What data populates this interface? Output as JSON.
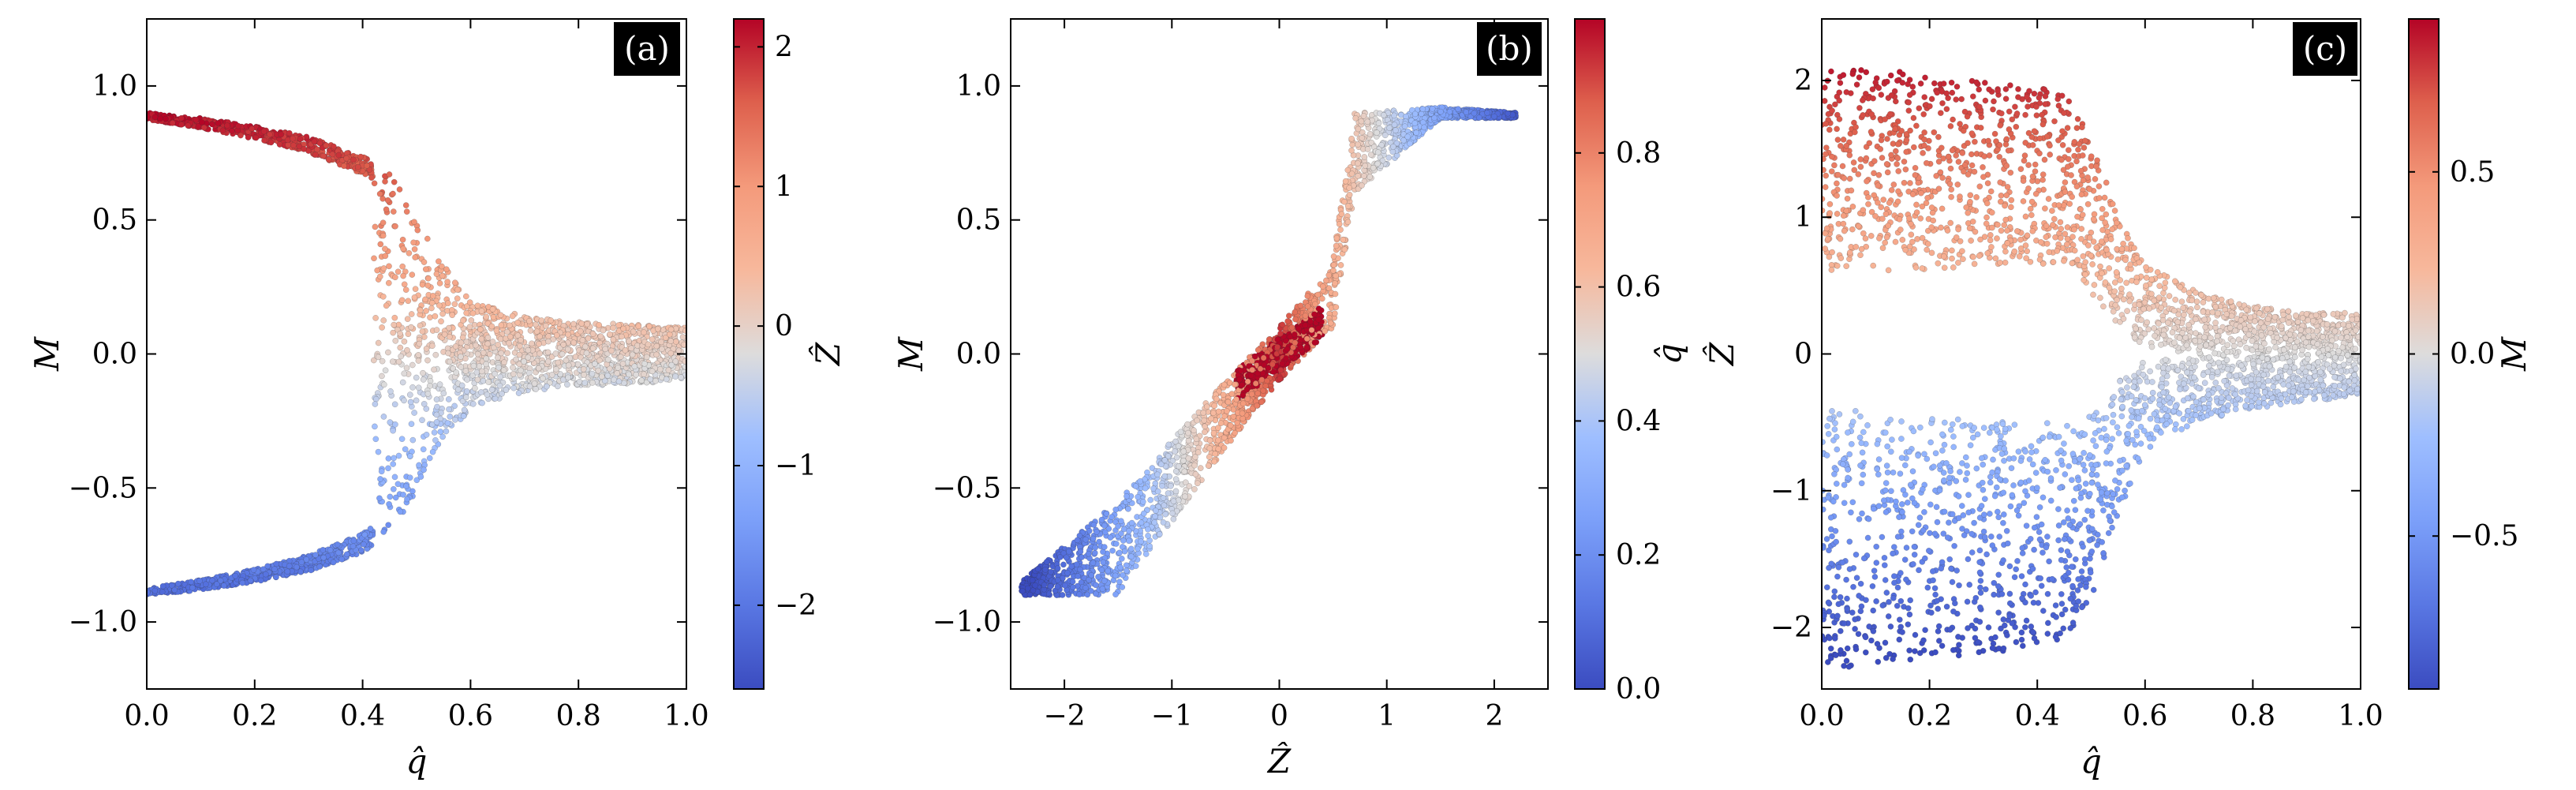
{
  "chart_data": [
    {
      "type": "scatter",
      "panel_label": "(a)",
      "xlabel": "q̂",
      "ylabel": "M",
      "xlim": [
        0.0,
        1.0
      ],
      "ylim": [
        -1.25,
        1.25
      ],
      "xticks": [
        0.0,
        0.2,
        0.4,
        0.6,
        0.8,
        1.0
      ],
      "xtick_labels": [
        "0.0",
        "0.2",
        "0.4",
        "0.6",
        "0.8",
        "1.0"
      ],
      "yticks": [
        -1.0,
        -0.5,
        0.0,
        0.5,
        1.0
      ],
      "ytick_labels": [
        "−1.0",
        "−0.5",
        "0.0",
        "0.5",
        "1.0"
      ],
      "color_var": "Z",
      "colorbar": {
        "label": "Ẑ",
        "range": [
          -2.6,
          2.2
        ],
        "ticks": [
          -2,
          -1,
          0,
          1,
          2
        ],
        "tick_labels": [
          "−2",
          "−1",
          "0",
          "1",
          "2"
        ],
        "colormap": "coolwarm"
      },
      "grid": false,
      "description_of_data": "Pitchfork-shaped distribution: two branches M≈±0.9 at q̂=0 converging to M≈0 for q̂>0.6",
      "curve": {
        "q": [
          0.0,
          0.1,
          0.2,
          0.3,
          0.4,
          0.45,
          0.5,
          0.55,
          0.6,
          0.7,
          0.8,
          0.9,
          1.0
        ],
        "upper_M": [
          0.9,
          0.88,
          0.85,
          0.81,
          0.74,
          0.67,
          0.52,
          0.33,
          0.2,
          0.14,
          0.12,
          0.11,
          0.1
        ],
        "lower_M": [
          -0.9,
          -0.88,
          -0.85,
          -0.81,
          -0.74,
          -0.67,
          -0.52,
          -0.33,
          -0.2,
          -0.14,
          -0.12,
          -0.11,
          -0.1
        ]
      }
    },
    {
      "type": "scatter",
      "panel_label": "(b)",
      "xlabel": "Ẑ",
      "ylabel": "M",
      "xlim": [
        -2.5,
        2.5
      ],
      "ylim": [
        -1.25,
        1.25
      ],
      "xticks": [
        -2,
        -1,
        0,
        1,
        2
      ],
      "xtick_labels": [
        "−2",
        "−1",
        "0",
        "1",
        "2"
      ],
      "yticks": [
        -1.0,
        -0.5,
        0.0,
        0.5,
        1.0
      ],
      "ytick_labels": [
        "−1.0",
        "−0.5",
        "0.0",
        "0.5",
        "1.0"
      ],
      "color_var": "q",
      "colorbar": {
        "label": "q̂",
        "range": [
          0.0,
          1.0
        ],
        "ticks": [
          0.0,
          0.2,
          0.4,
          0.6,
          0.8
        ],
        "tick_labels": [
          "0.0",
          "0.2",
          "0.4",
          "0.6",
          "0.8"
        ],
        "colormap": "coolwarm"
      },
      "grid": false,
      "description_of_data": "S-shaped band from (−2.4,−0.9) to (2.2,0.9); high q̂ cluster near origin, low q̂ at extremes",
      "curve": {
        "Z": [
          -2.4,
          -1.5,
          -0.5,
          0.0,
          0.5,
          0.7,
          1.5,
          2.2
        ],
        "M_low": [
          -0.9,
          -0.9,
          -0.35,
          -0.1,
          0.1,
          0.6,
          0.88,
          0.88
        ],
        "M_high": [
          -0.85,
          -0.55,
          -0.1,
          0.1,
          0.35,
          0.9,
          0.92,
          0.9
        ]
      }
    },
    {
      "type": "scatter",
      "panel_label": "(c)",
      "xlabel": "q̂",
      "ylabel": "Ẑ",
      "xlim": [
        0.0,
        1.0
      ],
      "ylim": [
        -2.45,
        2.45
      ],
      "xticks": [
        0.0,
        0.2,
        0.4,
        0.6,
        0.8,
        1.0
      ],
      "xtick_labels": [
        "0.0",
        "0.2",
        "0.4",
        "0.6",
        "0.8",
        "1.0"
      ],
      "yticks": [
        -2,
        -1,
        0,
        1,
        2
      ],
      "ytick_labels": [
        "−2",
        "−1",
        "0",
        "1",
        "2"
      ],
      "color_var": "M",
      "colorbar": {
        "label": "M",
        "range": [
          -0.92,
          0.92
        ],
        "ticks": [
          -0.5,
          0.0,
          0.5
        ],
        "tick_labels": [
          "−0.5",
          "0.0",
          "0.5"
        ],
        "colormap": "coolwarm"
      },
      "grid": false,
      "description_of_data": "Two bands Ẑ∈[0.6,2.1] (M>0) and Ẑ∈[-2.3,-0.4] (M<0) for q̂<0.5, merging to Ẑ∈[-0.3,0.3] for q̂>0.6",
      "curve": {
        "q": [
          0.0,
          0.2,
          0.4,
          0.45,
          0.5,
          0.55,
          0.6,
          0.7,
          0.8,
          0.9,
          1.0
        ],
        "upper_hi": [
          2.1,
          2.05,
          1.95,
          1.9,
          1.6,
          1.0,
          0.65,
          0.45,
          0.35,
          0.3,
          0.3
        ],
        "upper_lo": [
          0.6,
          0.62,
          0.65,
          0.65,
          0.45,
          0.2,
          0.05,
          0.0,
          0.0,
          0.0,
          0.0
        ],
        "lower_hi": [
          -0.4,
          -0.45,
          -0.5,
          -0.5,
          -0.45,
          -0.2,
          -0.05,
          0.0,
          0.0,
          0.0,
          0.0
        ],
        "lower_lo": [
          -2.3,
          -2.25,
          -2.15,
          -2.1,
          -1.8,
          -1.2,
          -0.7,
          -0.5,
          -0.4,
          -0.35,
          -0.3
        ]
      }
    }
  ]
}
